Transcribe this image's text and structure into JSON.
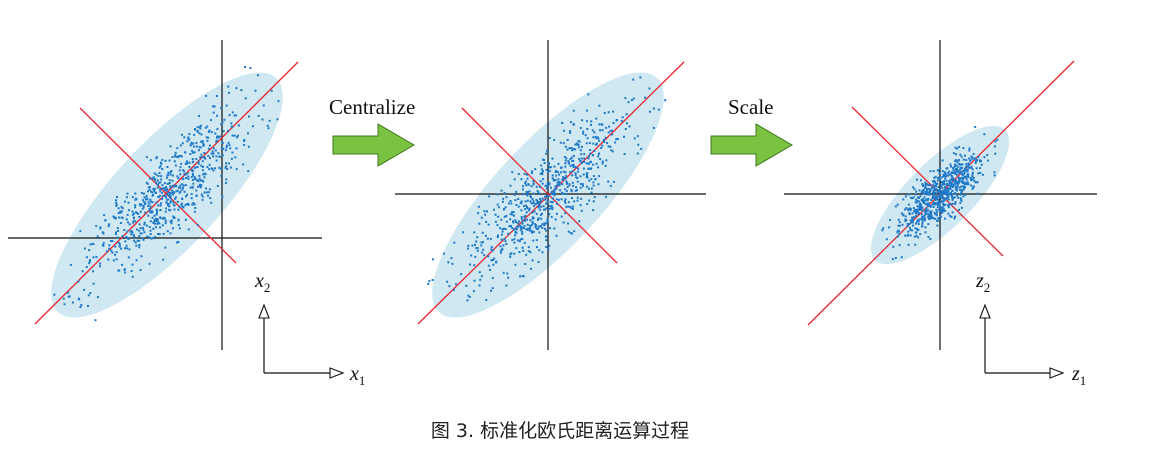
{
  "steps": {
    "centralize": "Centralize",
    "scale": "Scale"
  },
  "axes": {
    "original": {
      "vertical": "x",
      "vertical_sub": "2",
      "horizontal": "x",
      "horizontal_sub": "1"
    },
    "transformed": {
      "vertical": "z",
      "vertical_sub": "2",
      "horizontal": "z",
      "horizontal_sub": "1"
    }
  },
  "caption": "图 3. 标准化欧氏距离运算过程",
  "colors": {
    "points": "#1f78c8",
    "ellipse": "#cfe8f2",
    "principal_axes": "#e8242e",
    "axes": "#111111",
    "arrow_fill": "#7bc242",
    "arrow_stroke": "#3d7a1c"
  }
}
